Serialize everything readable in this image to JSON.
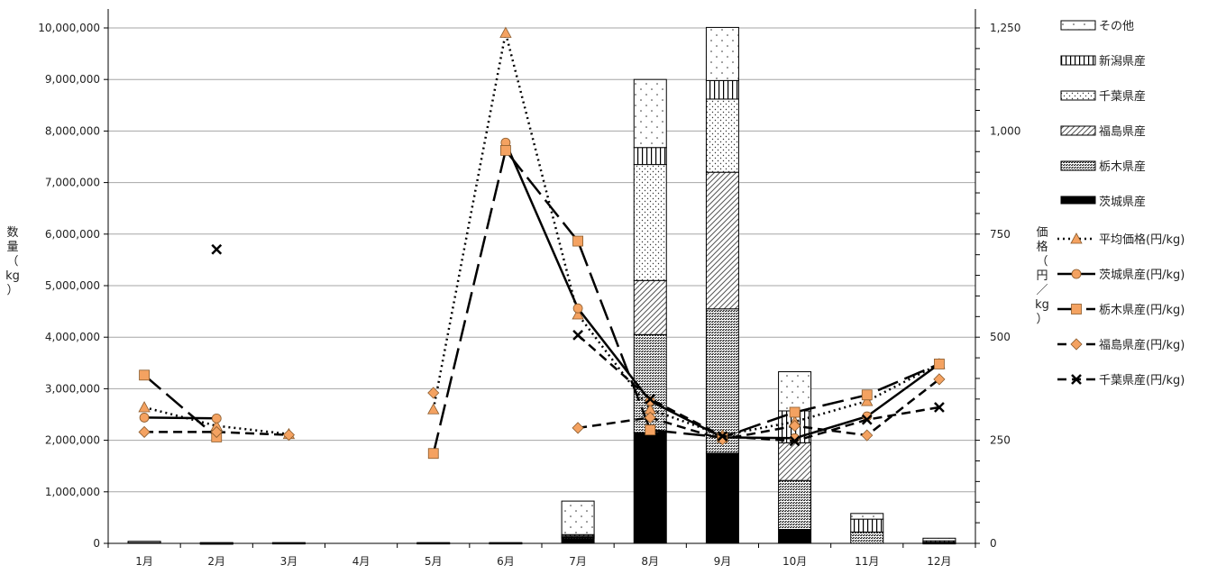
{
  "chart_data": {
    "type": "bar+line",
    "categories": [
      "1月",
      "2月",
      "3月",
      "4月",
      "5月",
      "6月",
      "7月",
      "8月",
      "9月",
      "10月",
      "11月",
      "12月"
    ],
    "y_left": {
      "label_chars": [
        "数",
        "量",
        "（",
        "kg",
        "）"
      ],
      "min": 0,
      "max": 10000000,
      "step": 1000000,
      "tick_labels": [
        "0",
        "1,000,000",
        "2,000,000",
        "3,000,000",
        "4,000,000",
        "5,000,000",
        "6,000,000",
        "7,000,000",
        "8,000,000",
        "9,000,000",
        "10,000,000"
      ]
    },
    "y_right": {
      "label_chars": [
        "価",
        "格",
        "（",
        "円",
        "／",
        "kg",
        "）"
      ],
      "min": 0,
      "max": 1250,
      "step": 250,
      "tick_labels": [
        "0",
        "250",
        "500",
        "750",
        "1,000",
        "1,250"
      ]
    },
    "bar_series": [
      {
        "name": "茨城県産",
        "pattern": "solid",
        "values": [
          30000,
          10000,
          0,
          0,
          0,
          0,
          100000,
          2150000,
          1750000,
          270000,
          0,
          0
        ]
      },
      {
        "name": "栃木県産",
        "pattern": "dense",
        "values": [
          10000,
          5000,
          15000,
          0,
          15000,
          15000,
          20000,
          1900000,
          2800000,
          950000,
          220000,
          15000
        ]
      },
      {
        "name": "福島県産",
        "pattern": "diag",
        "values": [
          0,
          0,
          0,
          0,
          0,
          0,
          20000,
          1050000,
          2650000,
          730000,
          0,
          10000
        ]
      },
      {
        "name": "千葉県産",
        "pattern": "dots",
        "values": [
          0,
          0,
          0,
          0,
          0,
          0,
          20000,
          2250000,
          1420000,
          0,
          0,
          10000
        ]
      },
      {
        "name": "新潟県産",
        "pattern": "vert",
        "values": [
          0,
          0,
          0,
          0,
          0,
          0,
          10000,
          330000,
          360000,
          620000,
          250000,
          15000
        ]
      },
      {
        "name": "その他",
        "pattern": "sparse",
        "values": [
          0,
          0,
          0,
          0,
          0,
          0,
          650000,
          1320000,
          1030000,
          760000,
          110000,
          50000
        ]
      }
    ],
    "line_series": [
      {
        "name": "平均価格(円/kg)",
        "dash": "dot",
        "marker": "triangle",
        "values": [
          330,
          285,
          265,
          null,
          325,
          1238,
          555,
          325,
          262,
          295,
          345,
          435
        ]
      },
      {
        "name": "茨城県産(円/kg)",
        "dash": "solid",
        "marker": "circle",
        "values": [
          305,
          303,
          null,
          null,
          null,
          972,
          570,
          345,
          257,
          255,
          308,
          435
        ]
      },
      {
        "name": "栃木県産(円/kg)",
        "dash": "longdash",
        "marker": "square",
        "values": [
          408,
          258,
          null,
          null,
          218,
          953,
          733,
          275,
          257,
          318,
          360,
          435
        ]
      },
      {
        "name": "福島県産(円/kg)",
        "dash": "dash",
        "marker": "diamond",
        "values": [
          270,
          270,
          263,
          null,
          365,
          null,
          280,
          305,
          252,
          285,
          262,
          398
        ]
      },
      {
        "name": "千葉県産(円/kg)",
        "dash": "dash",
        "marker": "x",
        "values": [
          null,
          713,
          null,
          null,
          null,
          null,
          505,
          350,
          260,
          248,
          300,
          330
        ]
      }
    ]
  },
  "colors": {
    "marker_fill": "#f4a261",
    "ink": "#000000",
    "grid": "#a6a6a6"
  }
}
